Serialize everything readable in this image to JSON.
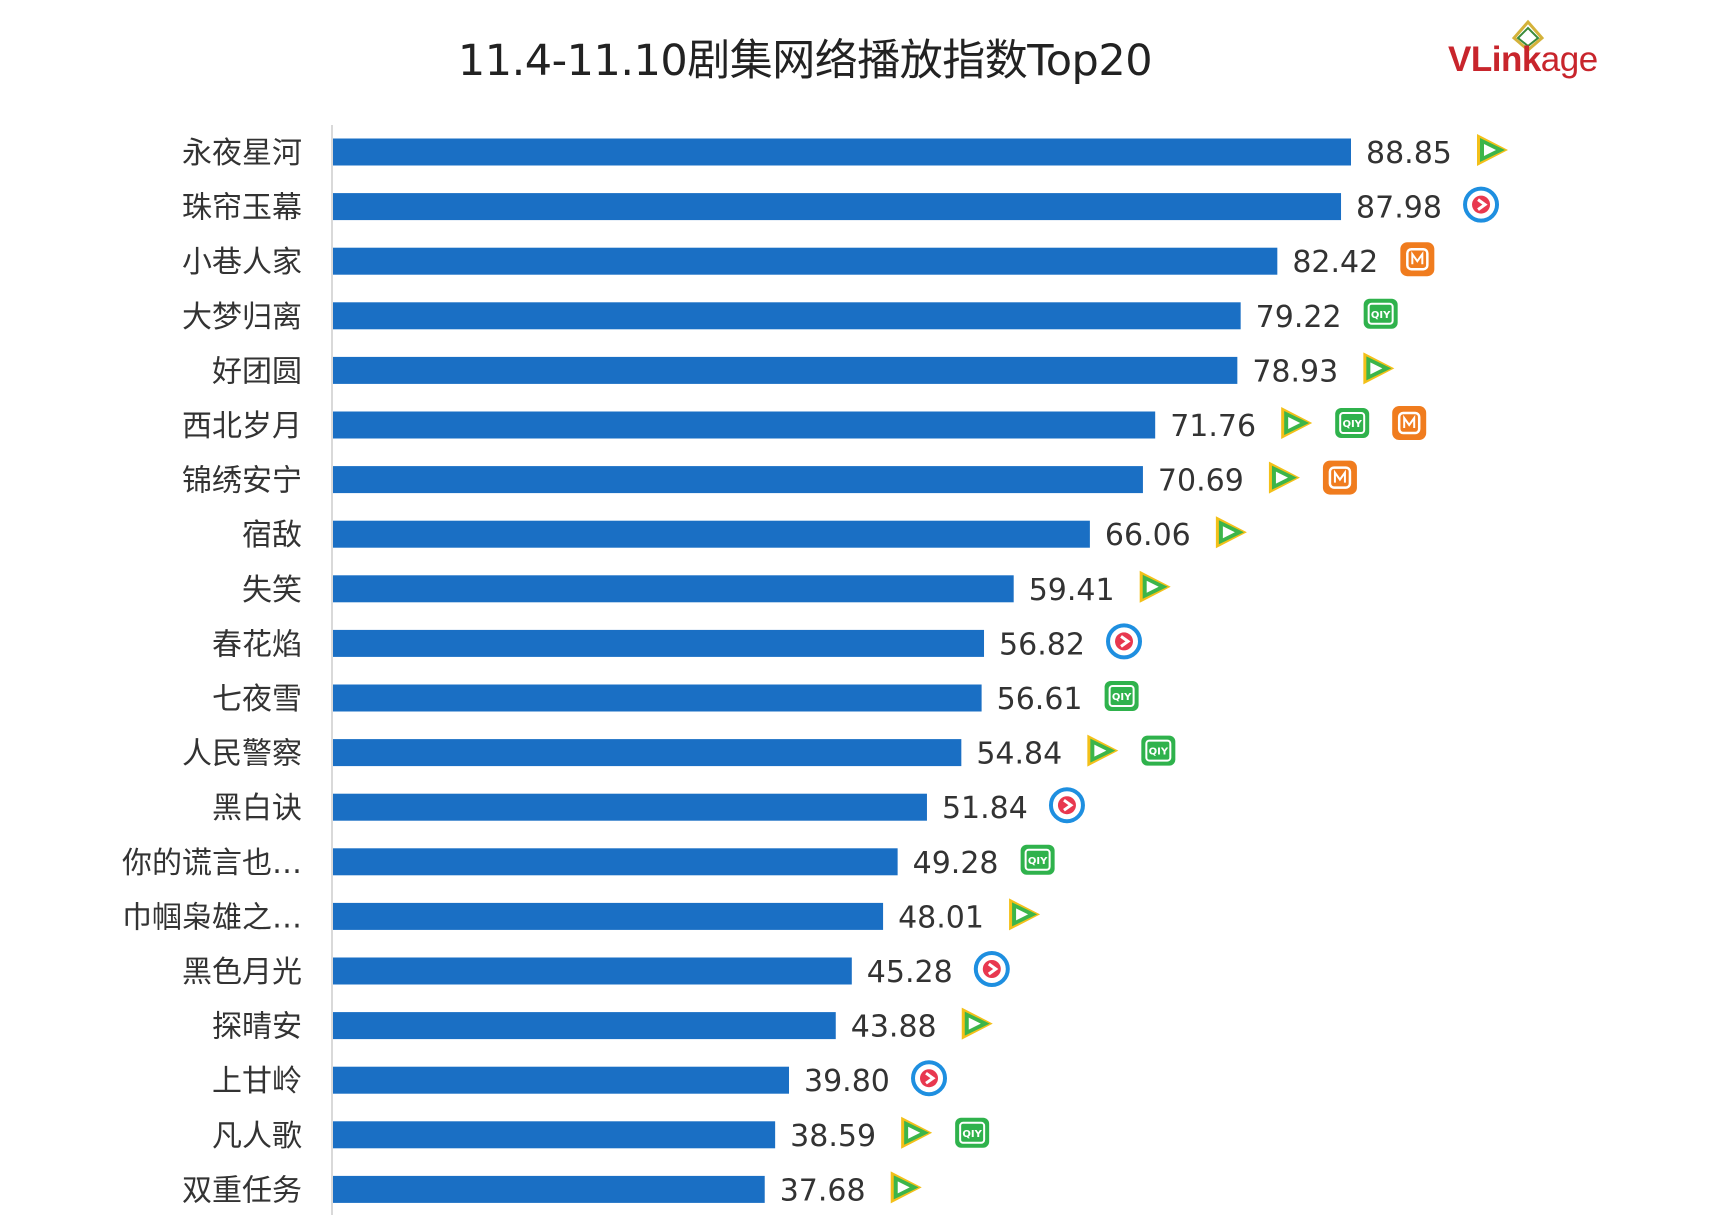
{
  "chart_data": {
    "type": "bar",
    "orientation": "horizontal",
    "title": "11.4-11.10剧集网络播放指数Top20",
    "xlim": [
      0,
      90
    ],
    "grid": false,
    "bar_color": "#1a6fc4",
    "categories": [
      "永夜星河",
      "珠帘玉幕",
      "小巷人家",
      "大梦归离",
      "好团圆",
      "西北岁月",
      "锦绣安宁",
      "宿敌",
      "失笑",
      "春花焰",
      "七夜雪",
      "人民警察",
      "黑白诀",
      "你的谎言也…",
      "巾帼枭雄之…",
      "黑色月光",
      "探晴安",
      "上甘岭",
      "凡人歌",
      "双重任务"
    ],
    "value_labels": [
      "88.85",
      "87.98",
      "82.42",
      "79.22",
      "78.93",
      "71.76",
      "70.69",
      "66.06",
      "59.41",
      "56.82",
      "56.61",
      "54.84",
      "51.84",
      "49.28",
      "48.01",
      "45.28",
      "43.88",
      "39.80",
      "38.59",
      "37.68"
    ],
    "values": [
      88.85,
      87.98,
      82.42,
      79.22,
      78.93,
      71.76,
      70.69,
      66.06,
      59.41,
      56.82,
      56.61,
      54.84,
      51.84,
      49.28,
      48.01,
      45.28,
      43.88,
      39.8,
      38.59,
      37.68
    ],
    "platforms": [
      [
        "tencent-video"
      ],
      [
        "youku"
      ],
      [
        "mango-tv"
      ],
      [
        "iqiyi"
      ],
      [
        "tencent-video"
      ],
      [
        "tencent-video",
        "iqiyi",
        "mango-tv"
      ],
      [
        "tencent-video",
        "mango-tv"
      ],
      [
        "tencent-video"
      ],
      [
        "tencent-video"
      ],
      [
        "youku"
      ],
      [
        "iqiyi"
      ],
      [
        "tencent-video",
        "iqiyi"
      ],
      [
        "youku"
      ],
      [
        "iqiyi"
      ],
      [
        "tencent-video"
      ],
      [
        "youku"
      ],
      [
        "tencent-video"
      ],
      [
        "youku"
      ],
      [
        "tencent-video",
        "iqiyi"
      ],
      [
        "tencent-video"
      ]
    ],
    "platform_colors": {
      "tencent-video": "#3cb54a",
      "youku": "#1e8fe0",
      "iqiyi": "#2fb24c",
      "mango-tv": "#f07c1e"
    }
  },
  "logo": {
    "text_brand": "VLink",
    "text_suffix": "age"
  }
}
